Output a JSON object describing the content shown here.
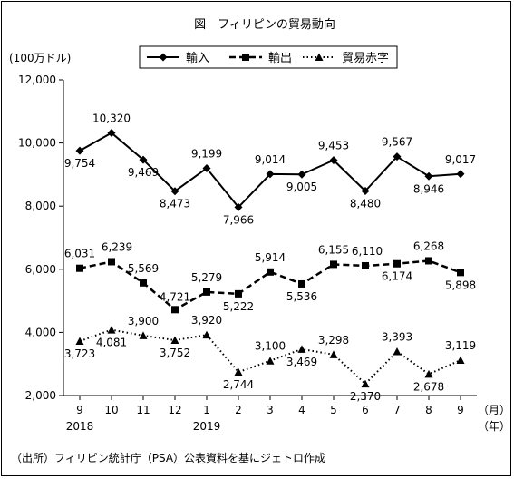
{
  "chart_data": {
    "type": "line",
    "title": "図　フィリピンの貿易動向",
    "ylabel": "(100万ドル)",
    "ylim": [
      2000,
      12000
    ],
    "yticks": [
      "2,000",
      "4,000",
      "6,000",
      "8,000",
      "10,000",
      "12,000"
    ],
    "categories": [
      "9",
      "10",
      "11",
      "12",
      "1",
      "2",
      "3",
      "4",
      "5",
      "6",
      "7",
      "8",
      "9"
    ],
    "year_labels": [
      {
        "index": 0,
        "label": "2018"
      },
      {
        "index": 4,
        "label": "2019"
      }
    ],
    "month_unit": "（月）",
    "year_unit": "（年）",
    "legend_position": "top",
    "source": "（出所）フィリピン統計庁（PSA）公表資料を基にジェトロ作成",
    "series": [
      {
        "name": "輸入",
        "style": "solid",
        "marker": "diamond",
        "values": [
          9754,
          10320,
          9469,
          8473,
          9199,
          7966,
          9014,
          9005,
          9453,
          8480,
          9567,
          8946,
          9017
        ],
        "labels": [
          "9,754",
          "10,320",
          "9,469",
          "8,473",
          "9,199",
          "7,966",
          "9,014",
          "9,005",
          "9,453",
          "8,480",
          "9,567",
          "8,946",
          "9,017"
        ]
      },
      {
        "name": "輸出",
        "style": "dashed",
        "marker": "square",
        "values": [
          6031,
          6239,
          5569,
          4721,
          5279,
          5222,
          5914,
          5536,
          6155,
          6110,
          6174,
          6268,
          5898
        ],
        "labels": [
          "6,031",
          "6,239",
          "5,569",
          "4,721",
          "5,279",
          "5,222",
          "5,914",
          "5,536",
          "6,155",
          "6,110",
          "6,174",
          "6,268",
          "5,898"
        ]
      },
      {
        "name": "貿易赤字",
        "style": "dotted",
        "marker": "triangle",
        "values": [
          3723,
          4081,
          3900,
          3752,
          3920,
          2744,
          3100,
          3469,
          3298,
          2370,
          3393,
          2678,
          3119
        ],
        "labels": [
          "3,723",
          "4,081",
          "3,900",
          "3,752",
          "3,920",
          "2,744",
          "3,100",
          "3,469",
          "3,298",
          "2,370",
          "3,393",
          "2,678",
          "3,119"
        ]
      }
    ]
  }
}
